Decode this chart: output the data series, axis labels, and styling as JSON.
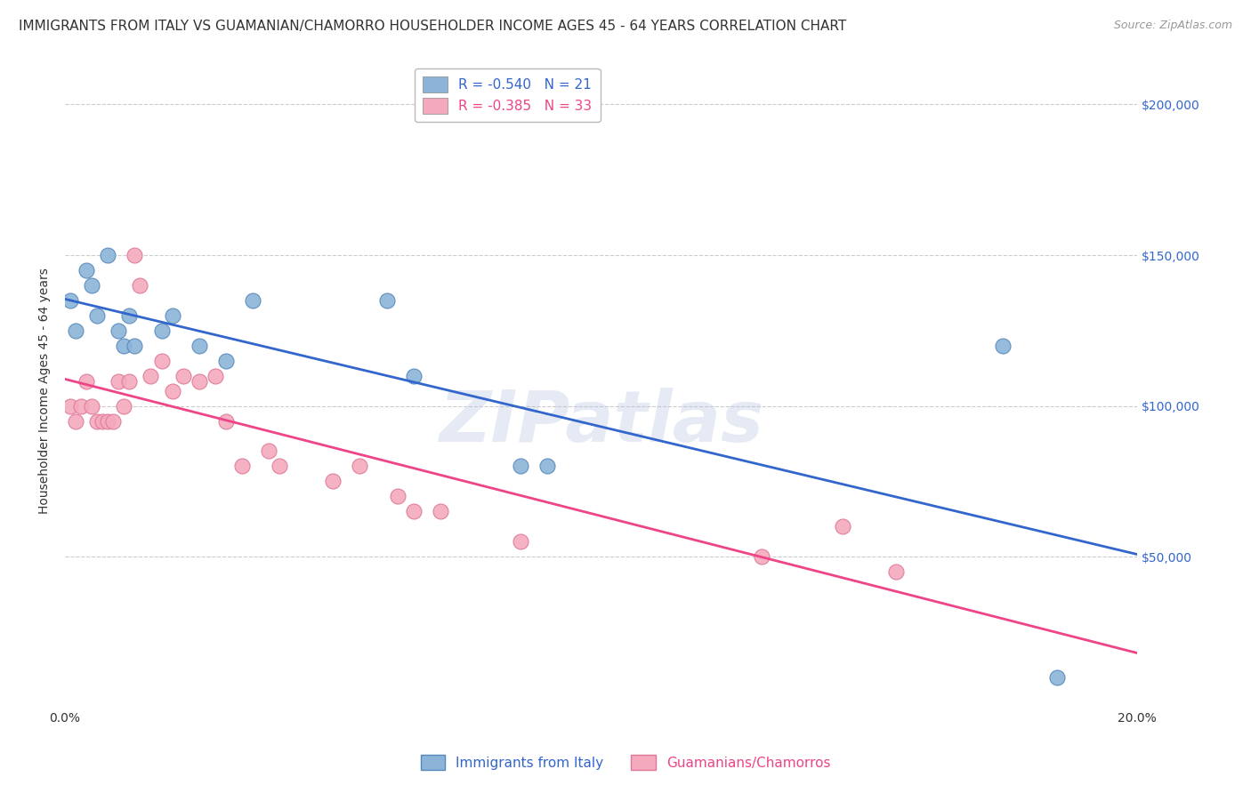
{
  "title": "IMMIGRANTS FROM ITALY VS GUAMANIAN/CHAMORRO HOUSEHOLDER INCOME AGES 45 - 64 YEARS CORRELATION CHART",
  "source": "Source: ZipAtlas.com",
  "ylabel": "Householder Income Ages 45 - 64 years",
  "xlim": [
    0,
    0.2
  ],
  "ylim": [
    0,
    210000
  ],
  "xticks": [
    0.0,
    0.02,
    0.04,
    0.06,
    0.08,
    0.1,
    0.12,
    0.14,
    0.16,
    0.18,
    0.2
  ],
  "xtick_labels": [
    "0.0%",
    "",
    "",
    "",
    "",
    "",
    "",
    "",
    "",
    "",
    "20.0%"
  ],
  "yticks": [
    0,
    50000,
    100000,
    150000,
    200000
  ],
  "italy_color": "#8BB4D8",
  "italy_edge": "#5588BB",
  "guam_color": "#F4AABC",
  "guam_edge": "#DD7799",
  "line_italy_color": "#3366CC",
  "line_guam_color": "#EE4488",
  "legend_italy_label": "R = -0.540   N = 21",
  "legend_guam_label": "R = -0.385   N = 33",
  "watermark": "ZIPatlas",
  "italy_x": [
    0.001,
    0.002,
    0.004,
    0.005,
    0.006,
    0.008,
    0.01,
    0.011,
    0.012,
    0.013,
    0.018,
    0.02,
    0.025,
    0.03,
    0.035,
    0.06,
    0.065,
    0.085,
    0.09,
    0.175,
    0.185
  ],
  "italy_y": [
    135000,
    125000,
    145000,
    140000,
    130000,
    150000,
    125000,
    120000,
    130000,
    120000,
    125000,
    130000,
    120000,
    115000,
    135000,
    135000,
    110000,
    80000,
    80000,
    120000,
    10000
  ],
  "guam_x": [
    0.001,
    0.002,
    0.003,
    0.004,
    0.005,
    0.006,
    0.007,
    0.008,
    0.009,
    0.01,
    0.011,
    0.012,
    0.013,
    0.014,
    0.016,
    0.018,
    0.02,
    0.022,
    0.025,
    0.028,
    0.03,
    0.033,
    0.038,
    0.04,
    0.05,
    0.055,
    0.062,
    0.065,
    0.07,
    0.085,
    0.13,
    0.145,
    0.155
  ],
  "guam_y": [
    100000,
    95000,
    100000,
    108000,
    100000,
    95000,
    95000,
    95000,
    95000,
    108000,
    100000,
    108000,
    150000,
    140000,
    110000,
    115000,
    105000,
    110000,
    108000,
    110000,
    95000,
    80000,
    85000,
    80000,
    75000,
    80000,
    70000,
    65000,
    65000,
    55000,
    50000,
    60000,
    45000
  ],
  "grid_color": "#CCCCCC",
  "bg_color": "#FFFFFF",
  "title_fontsize": 11,
  "tick_fontsize": 10,
  "ylabel_fontsize": 10,
  "right_tick_color": "#3366CC",
  "left_tick_color": "#333333"
}
